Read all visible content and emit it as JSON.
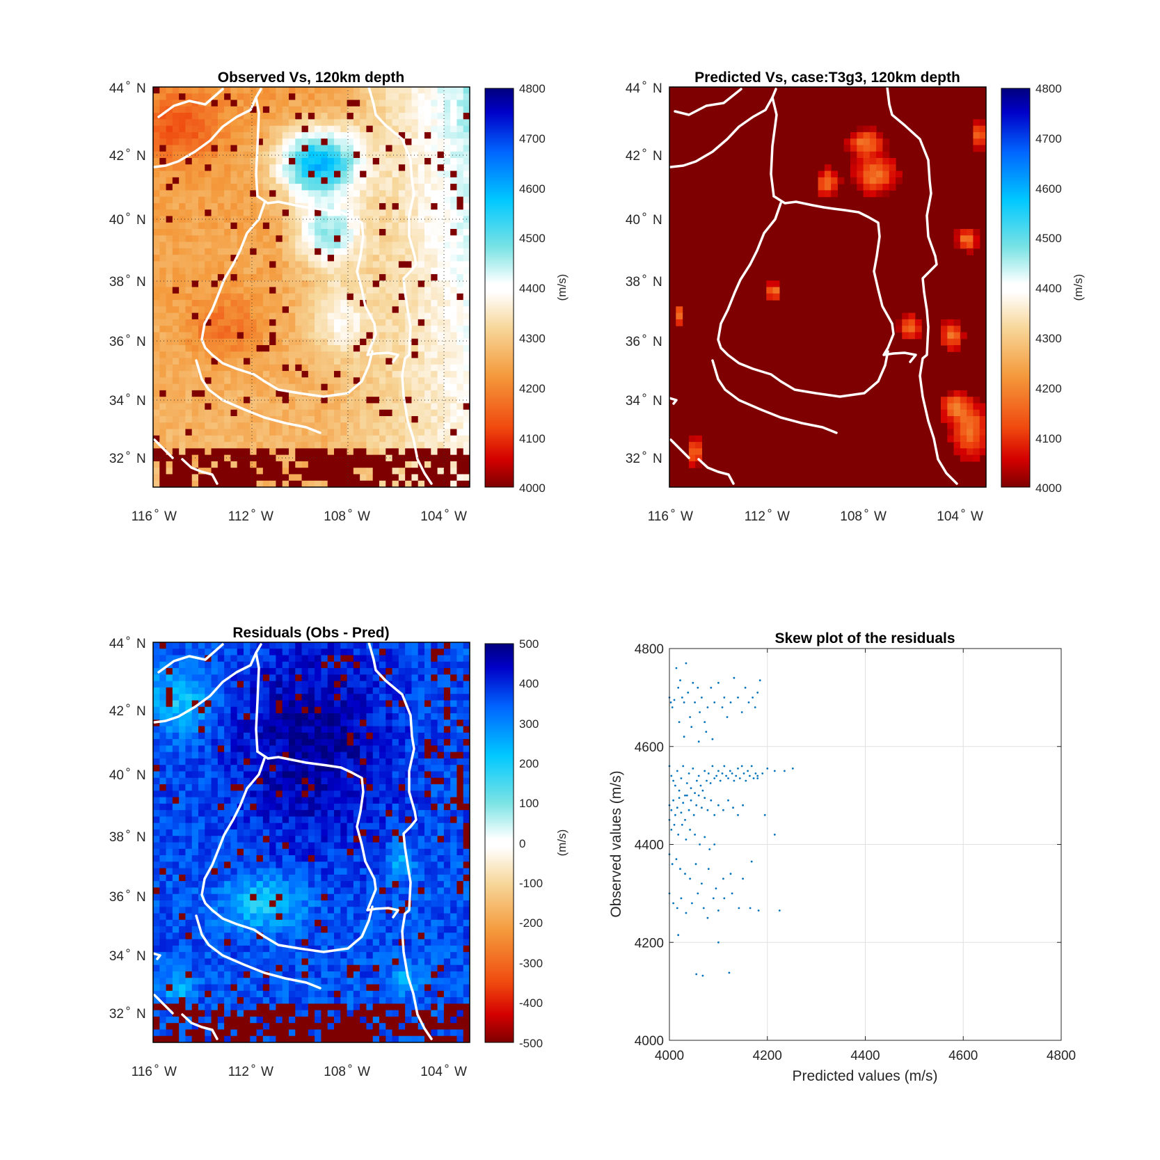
{
  "panels": [
    {
      "id": "observed",
      "title": "Observed Vs, 120km depth",
      "lat_ticks": [
        {
          "value": 44,
          "deg": "44",
          "hemi": "N"
        },
        {
          "value": 42,
          "deg": "42",
          "hemi": "N"
        },
        {
          "value": 40,
          "deg": "40",
          "hemi": "N"
        },
        {
          "value": 38,
          "deg": "38",
          "hemi": "N"
        },
        {
          "value": 36,
          "deg": "36",
          "hemi": "N"
        },
        {
          "value": 34,
          "deg": "34",
          "hemi": "N"
        },
        {
          "value": 32,
          "deg": "32",
          "hemi": "N"
        }
      ],
      "lon_ticks": [
        {
          "value": -116,
          "deg": "116",
          "hemi": "W"
        },
        {
          "value": -112,
          "deg": "112",
          "hemi": "W"
        },
        {
          "value": -108,
          "deg": "108",
          "hemi": "W"
        },
        {
          "value": -104,
          "deg": "104",
          "hemi": "W"
        }
      ],
      "colorbar": {
        "ticks": [
          "4800",
          "4700",
          "4600",
          "4500",
          "4400",
          "4300",
          "4200",
          "4100",
          "4000"
        ],
        "label": "(m/s)",
        "min": 4000,
        "max": 4800
      }
    },
    {
      "id": "predicted",
      "title": "Predicted Vs, case:T3g3, 120km depth",
      "lat_ticks": [
        {
          "value": 44,
          "deg": "44",
          "hemi": "N"
        },
        {
          "value": 42,
          "deg": "42",
          "hemi": "N"
        },
        {
          "value": 40,
          "deg": "40",
          "hemi": "N"
        },
        {
          "value": 38,
          "deg": "38",
          "hemi": "N"
        },
        {
          "value": 36,
          "deg": "36",
          "hemi": "N"
        },
        {
          "value": 34,
          "deg": "34",
          "hemi": "N"
        },
        {
          "value": 32,
          "deg": "32",
          "hemi": "N"
        }
      ],
      "lon_ticks": [
        {
          "value": -116,
          "deg": "116",
          "hemi": "W"
        },
        {
          "value": -112,
          "deg": "112",
          "hemi": "W"
        },
        {
          "value": -108,
          "deg": "108",
          "hemi": "W"
        },
        {
          "value": -104,
          "deg": "104",
          "hemi": "W"
        }
      ],
      "colorbar": {
        "ticks": [
          "4800",
          "4700",
          "4600",
          "4500",
          "4400",
          "4300",
          "4200",
          "4100",
          "4000"
        ],
        "label": "(m/s)",
        "min": 4000,
        "max": 4800
      }
    },
    {
      "id": "residuals",
      "title": "Residuals (Obs - Pred)",
      "lat_ticks": [
        {
          "value": 44,
          "deg": "44",
          "hemi": "N"
        },
        {
          "value": 42,
          "deg": "42",
          "hemi": "N"
        },
        {
          "value": 40,
          "deg": "40",
          "hemi": "N"
        },
        {
          "value": 38,
          "deg": "38",
          "hemi": "N"
        },
        {
          "value": 36,
          "deg": "36",
          "hemi": "N"
        },
        {
          "value": 34,
          "deg": "34",
          "hemi": "N"
        },
        {
          "value": 32,
          "deg": "32",
          "hemi": "N"
        }
      ],
      "lon_ticks": [
        {
          "value": -116,
          "deg": "116",
          "hemi": "W"
        },
        {
          "value": -112,
          "deg": "112",
          "hemi": "W"
        },
        {
          "value": -108,
          "deg": "108",
          "hemi": "W"
        },
        {
          "value": -104,
          "deg": "104",
          "hemi": "W"
        }
      ],
      "colorbar": {
        "ticks": [
          "500",
          "400",
          "300",
          "200",
          "100",
          "0",
          "-100",
          "-200",
          "-300",
          "-400",
          "-500"
        ],
        "label": "(m/s)",
        "min": -500,
        "max": 500
      }
    }
  ],
  "chart_data": {
    "type": "scatter",
    "title": "Skew plot of the residuals",
    "xlabel": "Predicted values (m/s)",
    "ylabel": "Observed values (m/s)",
    "xlim": [
      4000,
      4800
    ],
    "ylim": [
      4000,
      4800
    ],
    "xticks": [
      "4000",
      "4200",
      "4400",
      "4600",
      "4800"
    ],
    "yticks": [
      "4000",
      "4200",
      "4400",
      "4600",
      "4800"
    ],
    "grid": true,
    "color": "#0072bd",
    "points": [
      [
        4000,
        4700
      ],
      [
        4003,
        4690
      ],
      [
        4006,
        4680
      ],
      [
        4010,
        4695
      ],
      [
        4014,
        4760
      ],
      [
        4018,
        4720
      ],
      [
        4022,
        4735
      ],
      [
        4026,
        4700
      ],
      [
        4030,
        4690
      ],
      [
        4034,
        4770
      ],
      [
        4038,
        4710
      ],
      [
        4042,
        4660
      ],
      [
        4048,
        4730
      ],
      [
        4052,
        4690
      ],
      [
        4058,
        4720
      ],
      [
        4062,
        4670
      ],
      [
        4066,
        4700
      ],
      [
        4072,
        4650
      ],
      [
        4078,
        4680
      ],
      [
        4085,
        4720
      ],
      [
        4092,
        4690
      ],
      [
        4100,
        4730
      ],
      [
        4108,
        4680
      ],
      [
        4112,
        4700
      ],
      [
        4118,
        4660
      ],
      [
        4125,
        4690
      ],
      [
        4132,
        4740
      ],
      [
        4140,
        4700
      ],
      [
        4148,
        4670
      ],
      [
        4155,
        4720
      ],
      [
        4162,
        4690
      ],
      [
        4170,
        4700
      ],
      [
        4175,
        4680
      ],
      [
        4180,
        4710
      ],
      [
        4185,
        4735
      ],
      [
        4020,
        4650
      ],
      [
        4030,
        4620
      ],
      [
        4045,
        4640
      ],
      [
        4060,
        4610
      ],
      [
        4075,
        4630
      ],
      [
        4088,
        4615
      ],
      [
        4000,
        4560
      ],
      [
        4004,
        4540
      ],
      [
        4008,
        4530
      ],
      [
        4012,
        4520
      ],
      [
        4016,
        4550
      ],
      [
        4020,
        4510
      ],
      [
        4024,
        4535
      ],
      [
        4028,
        4560
      ],
      [
        4032,
        4500
      ],
      [
        4036,
        4525
      ],
      [
        4040,
        4545
      ],
      [
        4044,
        4515
      ],
      [
        4048,
        4555
      ],
      [
        4052,
        4505
      ],
      [
        4056,
        4530
      ],
      [
        4060,
        4540
      ],
      [
        4064,
        4520
      ],
      [
        4068,
        4510
      ],
      [
        4072,
        4550
      ],
      [
        4076,
        4530
      ],
      [
        4080,
        4545
      ],
      [
        4084,
        4525
      ],
      [
        4088,
        4560
      ],
      [
        4092,
        4535
      ],
      [
        4096,
        4540
      ],
      [
        4100,
        4550
      ],
      [
        4104,
        4530
      ],
      [
        4108,
        4545
      ],
      [
        4112,
        4560
      ],
      [
        4116,
        4540
      ],
      [
        4120,
        4535
      ],
      [
        4124,
        4550
      ],
      [
        4128,
        4545
      ],
      [
        4132,
        4530
      ],
      [
        4136,
        4540
      ],
      [
        4140,
        4555
      ],
      [
        4144,
        4535
      ],
      [
        4148,
        4560
      ],
      [
        4152,
        4545
      ],
      [
        4156,
        4530
      ],
      [
        4160,
        4550
      ],
      [
        4164,
        4540
      ],
      [
        4168,
        4560
      ],
      [
        4172,
        4535
      ],
      [
        4176,
        4545
      ],
      [
        4180,
        4540
      ],
      [
        4190,
        4545
      ],
      [
        4200,
        4555
      ],
      [
        4215,
        4550
      ],
      [
        4235,
        4550
      ],
      [
        4252,
        4555
      ],
      [
        4000,
        4480
      ],
      [
        4004,
        4470
      ],
      [
        4008,
        4490
      ],
      [
        4012,
        4460
      ],
      [
        4016,
        4475
      ],
      [
        4020,
        4495
      ],
      [
        4024,
        4465
      ],
      [
        4028,
        4485
      ],
      [
        4032,
        4450
      ],
      [
        4036,
        4500
      ],
      [
        4040,
        4470
      ],
      [
        4044,
        4490
      ],
      [
        4050,
        4460
      ],
      [
        4055,
        4480
      ],
      [
        4060,
        4500
      ],
      [
        4066,
        4475
      ],
      [
        4072,
        4495
      ],
      [
        4078,
        4470
      ],
      [
        4085,
        4490
      ],
      [
        4092,
        4460
      ],
      [
        4100,
        4480
      ],
      [
        4110,
        4470
      ],
      [
        4120,
        4490
      ],
      [
        4130,
        4475
      ],
      [
        4140,
        4460
      ],
      [
        4150,
        4480
      ],
      [
        4000,
        4450
      ],
      [
        4004,
        4430
      ],
      [
        4010,
        4440
      ],
      [
        4018,
        4420
      ],
      [
        4026,
        4440
      ],
      [
        4034,
        4410
      ],
      [
        4042,
        4430
      ],
      [
        4052,
        4420
      ],
      [
        4062,
        4400
      ],
      [
        4072,
        4415
      ],
      [
        4082,
        4390
      ],
      [
        4092,
        4400
      ],
      [
        4000,
        4380
      ],
      [
        4006,
        4360
      ],
      [
        4014,
        4370
      ],
      [
        4022,
        4350
      ],
      [
        4032,
        4340
      ],
      [
        4042,
        4330
      ],
      [
        4054,
        4360
      ],
      [
        4066,
        4320
      ],
      [
        4080,
        4350
      ],
      [
        4095,
        4310
      ],
      [
        4110,
        4330
      ],
      [
        4125,
        4340
      ],
      [
        4150,
        4330
      ],
      [
        4168,
        4365
      ],
      [
        4000,
        4300
      ],
      [
        4008,
        4280
      ],
      [
        4016,
        4270
      ],
      [
        4024,
        4290
      ],
      [
        4034,
        4260
      ],
      [
        4046,
        4280
      ],
      [
        4058,
        4300
      ],
      [
        4070,
        4270
      ],
      [
        4078,
        4250
      ],
      [
        4090,
        4290
      ],
      [
        4100,
        4265
      ],
      [
        4112,
        4290
      ],
      [
        4128,
        4300
      ],
      [
        4142,
        4270
      ],
      [
        4165,
        4270
      ],
      [
        4182,
        4265
      ],
      [
        4225,
        4265
      ],
      [
        4018,
        4215
      ],
      [
        4100,
        4200
      ],
      [
        4055,
        4135
      ],
      [
        4068,
        4132
      ],
      [
        4122,
        4138
      ],
      [
        4215,
        4420
      ],
      [
        4195,
        4460
      ],
      [
        4180,
        4535
      ]
    ]
  }
}
